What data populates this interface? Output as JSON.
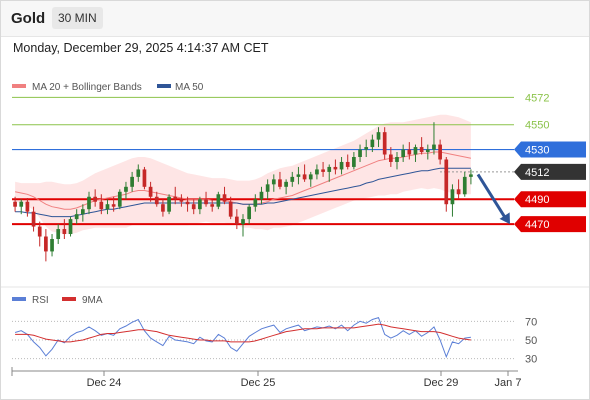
{
  "header": {
    "symbol": "Gold",
    "timeframe": "30 MIN",
    "timestamp": "Monday, December 29, 2025 4:14:37 AM CET"
  },
  "colors": {
    "candle_up": "#2e7d32",
    "candle_down": "#c62828",
    "bollinger_fill": "#fddcdc",
    "ma20": "#f08080",
    "ma50": "#2f5597",
    "support": "#e00000",
    "resistance_green": "#8bc34a",
    "pivot_blue": "#2f6fdb",
    "current": "#333333",
    "arrow": "#2f5597",
    "rsi": "#5b7fd6",
    "rsi_ma": "#d32f2f"
  },
  "chart_data": [
    {
      "type": "candlestick",
      "title": "Gold",
      "legend": [
        {
          "name": "MA 20 + Bollinger Bands",
          "color": "#f08080"
        },
        {
          "name": "MA 50",
          "color": "#2f5597"
        }
      ],
      "ylim": [
        4425,
        4590
      ],
      "x_ticks": [
        "Dec 24",
        "Dec 25",
        "Dec 29",
        "Jan 7"
      ],
      "levels": [
        {
          "value": 4572,
          "label": "4572",
          "kind": "resistance"
        },
        {
          "value": 4550,
          "label": "4550",
          "kind": "resistance"
        },
        {
          "value": 4530,
          "label": "4530",
          "kind": "pivot"
        },
        {
          "value": 4512,
          "label": "4512",
          "kind": "current"
        },
        {
          "value": 4490,
          "label": "4490",
          "kind": "support"
        },
        {
          "value": 4470,
          "label": "4470",
          "kind": "support"
        }
      ],
      "forecast_arrow": {
        "from": 4510,
        "to": 4470
      },
      "candles": [
        [
          4488,
          4492,
          4480,
          4484
        ],
        [
          4484,
          4490,
          4478,
          4488
        ],
        [
          4488,
          4491,
          4476,
          4480
        ],
        [
          4480,
          4484,
          4464,
          4468
        ],
        [
          4468,
          4472,
          4452,
          4460
        ],
        [
          4460,
          4466,
          4440,
          4448
        ],
        [
          4448,
          4462,
          4444,
          4458
        ],
        [
          4458,
          4470,
          4454,
          4466
        ],
        [
          4466,
          4474,
          4458,
          4462
        ],
        [
          4462,
          4476,
          4460,
          4474
        ],
        [
          4474,
          4482,
          4470,
          4478
        ],
        [
          4478,
          4486,
          4472,
          4482
        ],
        [
          4482,
          4496,
          4478,
          4492
        ],
        [
          4492,
          4498,
          4484,
          4488
        ],
        [
          4488,
          4494,
          4478,
          4482
        ],
        [
          4482,
          4490,
          4478,
          4486
        ],
        [
          4486,
          4492,
          4480,
          4484
        ],
        [
          4484,
          4498,
          4482,
          4496
        ],
        [
          4496,
          4504,
          4490,
          4500
        ],
        [
          4500,
          4512,
          4496,
          4508
        ],
        [
          4508,
          4518,
          4504,
          4514
        ],
        [
          4514,
          4516,
          4498,
          4500
        ],
        [
          4500,
          4504,
          4488,
          4492
        ],
        [
          4492,
          4496,
          4484,
          4486
        ],
        [
          4486,
          4490,
          4476,
          4480
        ],
        [
          4480,
          4494,
          4478,
          4492
        ],
        [
          4492,
          4500,
          4486,
          4490
        ],
        [
          4490,
          4494,
          4484,
          4488
        ],
        [
          4488,
          4492,
          4480,
          4486
        ],
        [
          4486,
          4490,
          4478,
          4482
        ],
        [
          4482,
          4492,
          4478,
          4490
        ],
        [
          4490,
          4496,
          4484,
          4486
        ],
        [
          4486,
          4490,
          4480,
          4484
        ],
        [
          4484,
          4496,
          4482,
          4494
        ],
        [
          4494,
          4500,
          4486,
          4488
        ],
        [
          4488,
          4492,
          4474,
          4476
        ],
        [
          4476,
          4482,
          4466,
          4470
        ],
        [
          4470,
          4478,
          4460,
          4474
        ],
        [
          4474,
          4486,
          4470,
          4484
        ],
        [
          4484,
          4494,
          4480,
          4490
        ],
        [
          4490,
          4500,
          4486,
          4496
        ],
        [
          4496,
          4506,
          4490,
          4502
        ],
        [
          4502,
          4510,
          4496,
          4506
        ],
        [
          4506,
          4512,
          4498,
          4500
        ],
        [
          4500,
          4506,
          4494,
          4504
        ],
        [
          4504,
          4512,
          4500,
          4508
        ],
        [
          4508,
          4516,
          4502,
          4510
        ],
        [
          4510,
          4518,
          4504,
          4506
        ],
        [
          4506,
          4512,
          4500,
          4510
        ],
        [
          4510,
          4518,
          4506,
          4514
        ],
        [
          4514,
          4520,
          4508,
          4512
        ],
        [
          4512,
          4518,
          4504,
          4516
        ],
        [
          4516,
          4522,
          4510,
          4514
        ],
        [
          4514,
          4524,
          4510,
          4520
        ],
        [
          4520,
          4526,
          4514,
          4516
        ],
        [
          4516,
          4528,
          4514,
          4524
        ],
        [
          4524,
          4534,
          4520,
          4530
        ],
        [
          4530,
          4538,
          4524,
          4532
        ],
        [
          4532,
          4542,
          4528,
          4538
        ],
        [
          4538,
          4548,
          4532,
          4544
        ],
        [
          4544,
          4548,
          4522,
          4526
        ],
        [
          4526,
          4532,
          4516,
          4520
        ],
        [
          4520,
          4528,
          4514,
          4524
        ],
        [
          4524,
          4534,
          4520,
          4530
        ],
        [
          4530,
          4536,
          4522,
          4526
        ],
        [
          4526,
          4534,
          4520,
          4532
        ],
        [
          4532,
          4540,
          4526,
          4528
        ],
        [
          4528,
          4534,
          4522,
          4530
        ],
        [
          4530,
          4552,
          4526,
          4534
        ],
        [
          4534,
          4538,
          4518,
          4522
        ],
        [
          4522,
          4524,
          4480,
          4486
        ],
        [
          4486,
          4502,
          4476,
          4498
        ],
        [
          4498,
          4506,
          4490,
          4494
        ],
        [
          4494,
          4512,
          4492,
          4508
        ],
        [
          4508,
          4514,
          4502,
          4510
        ]
      ],
      "ma20": [
        4496,
        4495,
        4494,
        4492,
        4489,
        4486,
        4484,
        4483,
        4482,
        4482,
        4483,
        4485,
        4487,
        4489,
        4490,
        4491,
        4492,
        4493,
        4494,
        4496,
        4497,
        4497,
        4496,
        4495,
        4494,
        4493,
        4492,
        4491,
        4490,
        4490,
        4490,
        4490,
        4489,
        4489,
        4489,
        4488,
        4487,
        4486,
        4486,
        4486,
        4487,
        4488,
        4490,
        4491,
        4492,
        4493,
        4495,
        4497,
        4499,
        4501,
        4503,
        4505,
        4507,
        4509,
        4511,
        4513,
        4515,
        4517,
        4519,
        4521,
        4522,
        4523,
        4523,
        4524,
        4525,
        4526,
        4527,
        4527,
        4528,
        4528,
        4527,
        4526,
        4525,
        4524,
        4523
      ],
      "bb_upper": [
        4504,
        4503,
        4503,
        4503,
        4503,
        4504,
        4504,
        4503,
        4502,
        4502,
        4503,
        4505,
        4508,
        4511,
        4513,
        4515,
        4517,
        4519,
        4521,
        4523,
        4524,
        4524,
        4523,
        4521,
        4519,
        4517,
        4515,
        4513,
        4511,
        4510,
        4509,
        4508,
        4507,
        4507,
        4507,
        4506,
        4505,
        4505,
        4505,
        4506,
        4508,
        4511,
        4513,
        4515,
        4516,
        4517,
        4519,
        4521,
        4523,
        4525,
        4527,
        4529,
        4531,
        4533,
        4535,
        4537,
        4540,
        4543,
        4546,
        4549,
        4551,
        4552,
        4552,
        4552,
        4553,
        4554,
        4555,
        4556,
        4557,
        4558,
        4558,
        4557,
        4556,
        4554,
        4552
      ],
      "bb_lower": [
        4488,
        4487,
        4485,
        4481,
        4475,
        4468,
        4464,
        4463,
        4462,
        4462,
        4463,
        4465,
        4466,
        4467,
        4467,
        4467,
        4467,
        4467,
        4467,
        4469,
        4470,
        4470,
        4469,
        4469,
        4469,
        4469,
        4469,
        4469,
        4469,
        4470,
        4471,
        4472,
        4471,
        4471,
        4471,
        4470,
        4469,
        4467,
        4467,
        4466,
        4466,
        4465,
        4467,
        4467,
        4468,
        4469,
        4471,
        4473,
        4475,
        4477,
        4479,
        4481,
        4483,
        4485,
        4487,
        4489,
        4490,
        4491,
        4492,
        4493,
        4493,
        4494,
        4494,
        4496,
        4497,
        4498,
        4499,
        4498,
        4499,
        4498,
        4496,
        4495,
        4494,
        4494,
        4494
      ],
      "ma50": [
        4480,
        4480,
        4479,
        4479,
        4478,
        4477,
        4476,
        4476,
        4476,
        4476,
        4477,
        4478,
        4479,
        4480,
        4481,
        4482,
        4482,
        4483,
        4484,
        4485,
        4486,
        4487,
        4487,
        4487,
        4487,
        4487,
        4487,
        4487,
        4487,
        4487,
        4487,
        4487,
        4487,
        4487,
        4487,
        4487,
        4487,
        4486,
        4486,
        4486,
        4486,
        4487,
        4487,
        4488,
        4489,
        4490,
        4491,
        4492,
        4493,
        4494,
        4495,
        4496,
        4497,
        4498,
        4499,
        4500,
        4501,
        4503,
        4504,
        4506,
        4507,
        4508,
        4509,
        4510,
        4511,
        4512,
        4513,
        4513,
        4514,
        4515,
        4515,
        4515,
        4515,
        4515,
        4515
      ]
    },
    {
      "type": "line",
      "title": "RSI",
      "legend": [
        {
          "name": "RSI",
          "color": "#5b7fd6"
        },
        {
          "name": "9MA",
          "color": "#d32f2f"
        }
      ],
      "ylim": [
        20,
        80
      ],
      "y_ticks": [
        70,
        50,
        30
      ],
      "series": [
        {
          "name": "RSI",
          "values": [
            58,
            60,
            56,
            48,
            42,
            33,
            40,
            50,
            47,
            54,
            58,
            60,
            64,
            60,
            55,
            57,
            55,
            62,
            65,
            69,
            72,
            60,
            52,
            48,
            44,
            54,
            50,
            49,
            48,
            46,
            53,
            49,
            48,
            56,
            52,
            42,
            38,
            46,
            54,
            58,
            62,
            64,
            66,
            58,
            62,
            64,
            66,
            60,
            62,
            64,
            63,
            65,
            62,
            66,
            60,
            66,
            70,
            68,
            72,
            74,
            56,
            52,
            55,
            60,
            56,
            60,
            54,
            58,
            64,
            50,
            32,
            48,
            46,
            52,
            53
          ]
        },
        {
          "name": "9MA",
          "values": [
            56,
            56,
            56,
            55,
            53,
            51,
            50,
            49,
            48,
            48,
            49,
            50,
            52,
            54,
            56,
            57,
            57,
            58,
            59,
            60,
            61,
            61,
            60,
            59,
            57,
            55,
            54,
            53,
            52,
            51,
            50,
            50,
            49,
            49,
            49,
            48,
            48,
            48,
            48,
            49,
            51,
            53,
            55,
            57,
            59,
            60,
            61,
            62,
            62,
            62,
            63,
            63,
            63,
            63,
            63,
            63,
            64,
            65,
            66,
            67,
            66,
            64,
            63,
            62,
            61,
            60,
            59,
            59,
            59,
            58,
            56,
            54,
            52,
            51,
            50
          ]
        }
      ]
    }
  ]
}
